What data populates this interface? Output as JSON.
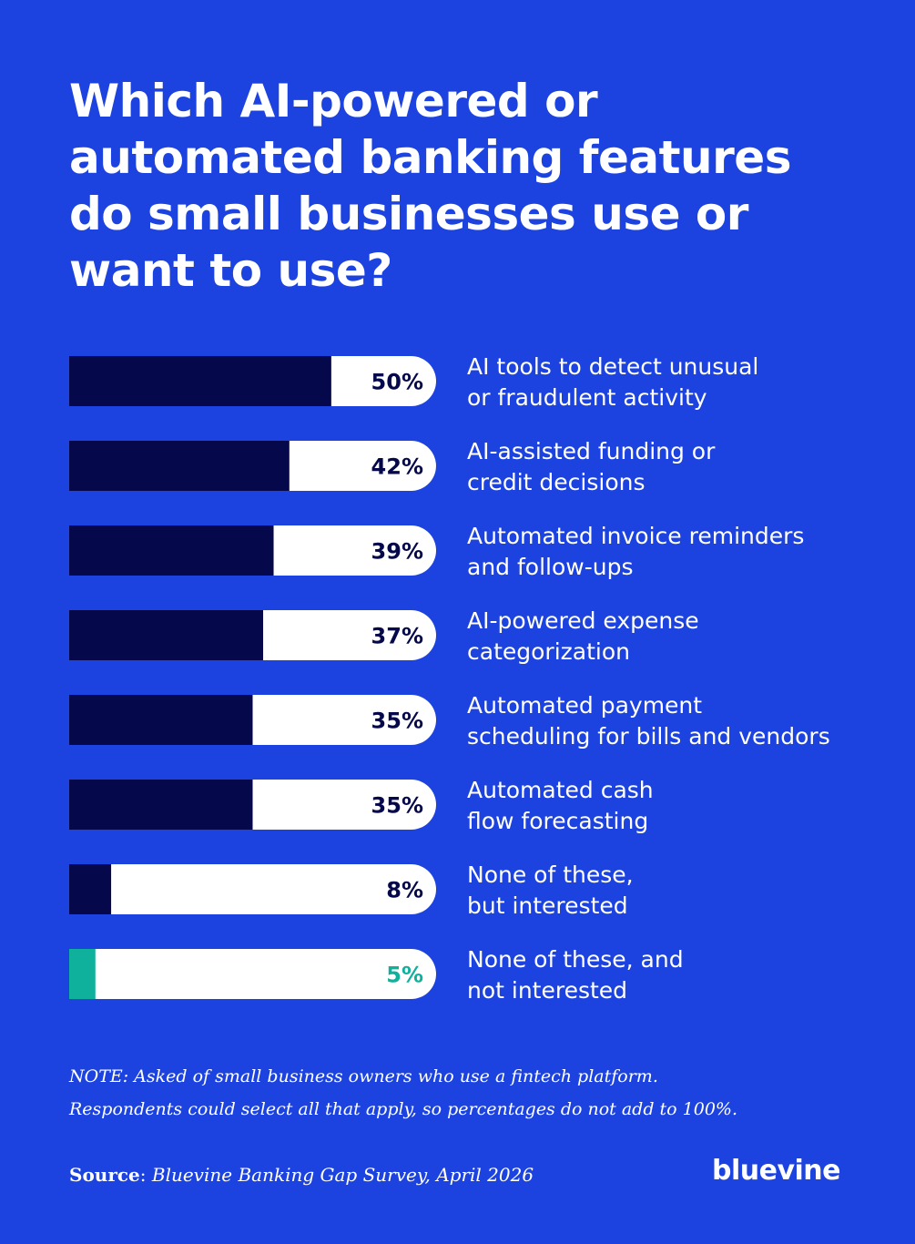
{
  "title": "Which AI-powered or automated banking features do small businesses use or want to use?",
  "colors": {
    "background": "#1c43e0",
    "bar_fill": "#05084a",
    "bar_fill_highlight": "#0fb09c",
    "bar_track": "#ffffff",
    "value_text": "#05084a",
    "value_text_highlight": "#0fb09c"
  },
  "chart_data": {
    "type": "bar",
    "orientation": "horizontal",
    "categories": [
      [
        "AI tools to detect unusual",
        "or fraudulent activity"
      ],
      [
        "AI-assisted funding or",
        "credit decisions"
      ],
      [
        "Automated invoice reminders",
        "and follow-ups"
      ],
      [
        "AI-powered expense",
        "categorization"
      ],
      [
        "Automated payment",
        "scheduling for bills and vendors"
      ],
      [
        "Automated cash",
        "flow forecasting"
      ],
      [
        "None of these,",
        "but interested"
      ],
      [
        "None of these, and",
        "not interested"
      ]
    ],
    "values": [
      50,
      42,
      39,
      37,
      35,
      35,
      8,
      5
    ],
    "value_labels": [
      "50%",
      "42%",
      "39%",
      "37%",
      "35%",
      "35%",
      "8%",
      "5%"
    ],
    "highlight": [
      false,
      false,
      false,
      false,
      false,
      false,
      false,
      true
    ],
    "xlim": [
      0,
      70
    ]
  },
  "note_lines": [
    "NOTE: Asked of small business owners who use a fintech platform.",
    "Respondents could select all that apply, so percentages do not add to 100%."
  ],
  "source": {
    "label": "Source",
    "text": "Bluevine Banking Gap Survey, April 2026"
  },
  "logo_text": "bluevine"
}
